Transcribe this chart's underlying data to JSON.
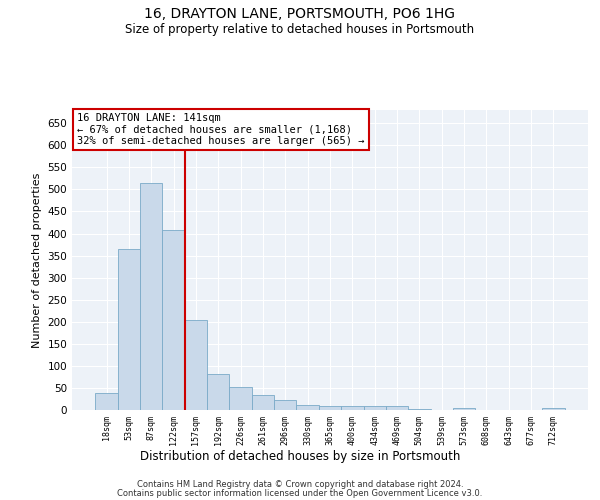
{
  "title": "16, DRAYTON LANE, PORTSMOUTH, PO6 1HG",
  "subtitle": "Size of property relative to detached houses in Portsmouth",
  "xlabel": "Distribution of detached houses by size in Portsmouth",
  "ylabel": "Number of detached properties",
  "bar_color": "#c9d9ea",
  "bar_edge_color": "#7aaac8",
  "vline_color": "#cc0000",
  "vline_x_idx": 3,
  "annotation_line1": "16 DRAYTON LANE: 141sqm",
  "annotation_line2": "← 67% of detached houses are smaller (1,168)",
  "annotation_line3": "32% of semi-detached houses are larger (565) →",
  "annotation_box_color": "#ffffff",
  "annotation_box_edge": "#cc0000",
  "categories": [
    "18sqm",
    "53sqm",
    "87sqm",
    "122sqm",
    "157sqm",
    "192sqm",
    "226sqm",
    "261sqm",
    "296sqm",
    "330sqm",
    "365sqm",
    "400sqm",
    "434sqm",
    "469sqm",
    "504sqm",
    "539sqm",
    "573sqm",
    "608sqm",
    "643sqm",
    "677sqm",
    "712sqm"
  ],
  "values": [
    38,
    365,
    515,
    408,
    204,
    82,
    52,
    35,
    22,
    12,
    8,
    8,
    8,
    8,
    3,
    0,
    5,
    0,
    0,
    0,
    5
  ],
  "ylim": [
    0,
    680
  ],
  "yticks": [
    0,
    50,
    100,
    150,
    200,
    250,
    300,
    350,
    400,
    450,
    500,
    550,
    600,
    650
  ],
  "footnote1": "Contains HM Land Registry data © Crown copyright and database right 2024.",
  "footnote2": "Contains public sector information licensed under the Open Government Licence v3.0.",
  "bg_color": "#edf2f8",
  "grid_color": "#ffffff",
  "fig_width": 6.0,
  "fig_height": 5.0,
  "dpi": 100
}
